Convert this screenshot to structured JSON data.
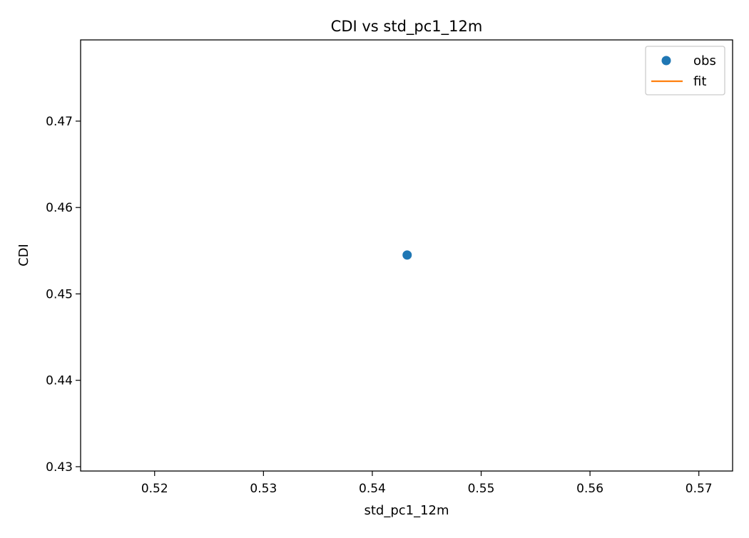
{
  "chart_data": {
    "type": "scatter",
    "title": "CDI vs std_pc1_12m",
    "xlabel": "std_pc1_12m",
    "ylabel": "CDI",
    "xlim": [
      0.5132,
      0.5731
    ],
    "ylim": [
      0.4295,
      0.4794
    ],
    "xticks": [
      0.52,
      0.53,
      0.54,
      0.55,
      0.56,
      0.57
    ],
    "xtick_labels": [
      "0.52",
      "0.53",
      "0.54",
      "0.55",
      "0.56",
      "0.57"
    ],
    "yticks": [
      0.43,
      0.44,
      0.45,
      0.46,
      0.47
    ],
    "ytick_labels": [
      "0.43",
      "0.44",
      "0.45",
      "0.46",
      "0.47"
    ],
    "grid": false,
    "legend_position": "top-right",
    "series": [
      {
        "name": "obs",
        "kind": "scatter",
        "color": "#1f77b4",
        "points": [
          [
            0.5432,
            0.4545
          ]
        ]
      },
      {
        "name": "fit",
        "kind": "line",
        "color": "#ff7f0e",
        "points": []
      }
    ]
  }
}
